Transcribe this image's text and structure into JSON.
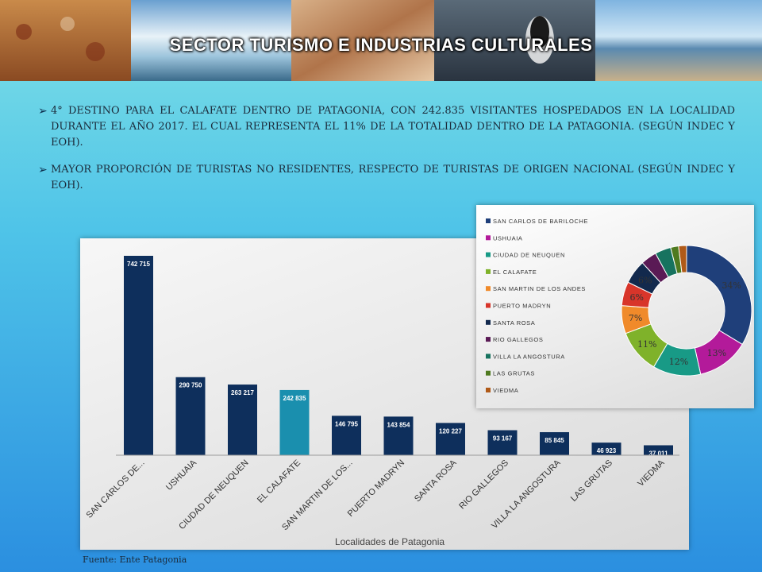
{
  "slide": {
    "title": "SECTOR TURISMO E INDUSTRIAS CULTURALES",
    "bullets": [
      "4° DESTINO PARA EL CALAFATE DENTRO DE PATAGONIA, CON 242.835 VISITANTES HOSPEDADOS EN LA LOCALIDAD DURANTE EL AÑO 2017. EL CUAL REPRESENTA EL 11% DE LA TOTALIDAD DENTRO DE LA PATAGONIA. (SEGÚN INDEC Y EOH).",
      "MAYOR PROPORCIÓN DE TURISTAS NO RESIDENTES, RESPECTO DE TURISTAS DE ORIGEN NACIONAL (SEGÚN INDEC Y EOH)."
    ],
    "source": "Fuente: Ente Patagonia",
    "bullet_icon": "arrowhead-bullet"
  },
  "chart_data": [
    {
      "type": "bar",
      "xlabel": "Localidades de Patagonia",
      "categories": [
        "SAN CARLOS DE...",
        "USHUAIA",
        "CIUDAD DE NEUQUEN",
        "EL CALAFATE",
        "SAN MARTIN DE LOS...",
        "PUERTO MADRYN",
        "SANTA ROSA",
        "RIO GALLEGOS",
        "VILLA LA ANGOSTURA",
        "LAS GRUTAS",
        "VIEDMA"
      ],
      "values": [
        742715,
        290750,
        263217,
        242835,
        146795,
        143854,
        120227,
        93167,
        85845,
        46923,
        37011
      ],
      "value_labels": [
        "742 715",
        "290 750",
        "263 217",
        "242 835",
        "146 795",
        "143 854",
        "120 227",
        "93 167",
        "85 845",
        "46 923",
        "37 011"
      ],
      "highlight_index": 3,
      "colors": {
        "bar": "#0e2f5c",
        "highlight": "#1a8fae"
      },
      "ylim": [
        0,
        742715
      ],
      "grid": false
    },
    {
      "type": "pie",
      "donut": true,
      "legend_position": "left",
      "labels": [
        "SAN CARLOS DE BARILOCHE",
        "USHUAIA",
        "CIUDAD DE NEUQUEN",
        "EL CALAFATE",
        "SAN MARTIN DE LOS ANDES",
        "PUERTO MADRYN",
        "SANTA ROSA",
        "RIO GALLEGOS",
        "VILLA LA ANGOSTURA",
        "LAS GRUTAS",
        "VIEDMA"
      ],
      "values": [
        34,
        13,
        12,
        11,
        7,
        6,
        6,
        4,
        4,
        2,
        2
      ],
      "value_labels": [
        "34%",
        "13%",
        "12%",
        "11%",
        "7%",
        "6%",
        "6%",
        "",
        "",
        "",
        ""
      ],
      "colors": [
        "#1f3f7a",
        "#b31a9a",
        "#189a86",
        "#7fb22a",
        "#f08a2a",
        "#d8352a",
        "#12294d",
        "#5a1a55",
        "#17735f",
        "#4f7a20",
        "#b05a18"
      ]
    }
  ]
}
